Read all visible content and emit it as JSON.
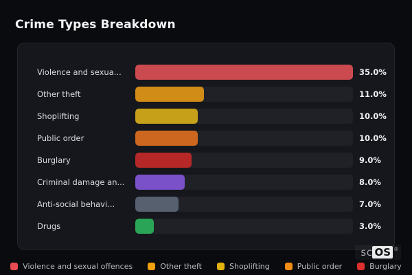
{
  "header": {
    "title": "Crime Types Breakdown"
  },
  "chart_data": {
    "type": "bar",
    "orientation": "horizontal",
    "title": "Crime Types Breakdown",
    "categories": [
      "Violence and sexua...",
      "Other theft",
      "Shoplifting",
      "Public order",
      "Burglary",
      "Criminal damage an...",
      "Anti-social behavi...",
      "Drugs"
    ],
    "values": [
      35.0,
      11.0,
      10.0,
      10.0,
      9.0,
      8.0,
      7.0,
      3.0
    ],
    "value_labels": [
      "35.0%",
      "11.0%",
      "10.0%",
      "10.0%",
      "9.0%",
      "8.0%",
      "7.0%",
      "3.0%"
    ],
    "colors": [
      "#cb4a4f",
      "#d18c17",
      "#c7a019",
      "#cd671f",
      "#b52827",
      "#7b51c9",
      "#57606f",
      "#2aa456"
    ],
    "max_value": 35,
    "unit": "%",
    "grid": false,
    "legend_position": "bottom",
    "track_color": "#1f2127"
  },
  "legend": {
    "items": [
      {
        "label": "Violence and sexual offences",
        "color": "#e84b52"
      },
      {
        "label": "Other theft",
        "color": "#eea10d"
      },
      {
        "label": "Shoplifting",
        "color": "#e2b30f"
      },
      {
        "label": "Public order",
        "color": "#ee8c15"
      },
      {
        "label": "Burglary",
        "color": "#dd2f2e"
      }
    ]
  },
  "watermark": {
    "prefix": "sc",
    "box": "OS",
    "registered": "®"
  },
  "theme": {
    "page_background": "#0a0b0e",
    "panel_background": "#15171c",
    "panel_border": "#25272e"
  }
}
